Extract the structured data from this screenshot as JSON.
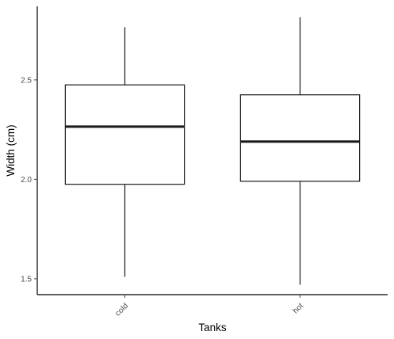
{
  "chart_data": {
    "type": "box",
    "xlabel": "Tanks",
    "ylabel": "Width (cm)",
    "ylim": [
      1.42,
      2.87
    ],
    "yticks": [
      1.5,
      2.0,
      2.5
    ],
    "ytick_labels": [
      "1.5",
      "2.0",
      "2.5"
    ],
    "categories": [
      "cold",
      "hot"
    ],
    "boxes": [
      {
        "category": "cold",
        "min": 1.51,
        "q1": 1.975,
        "median": 2.265,
        "q3": 2.475,
        "max": 2.765
      },
      {
        "category": "hot",
        "min": 1.47,
        "q1": 1.99,
        "median": 2.19,
        "q3": 2.425,
        "max": 2.815
      }
    ],
    "grid": false,
    "colors": {
      "box_fill": "#ffffff",
      "box_stroke": "#1a1a1a",
      "axis": "#000000"
    }
  }
}
